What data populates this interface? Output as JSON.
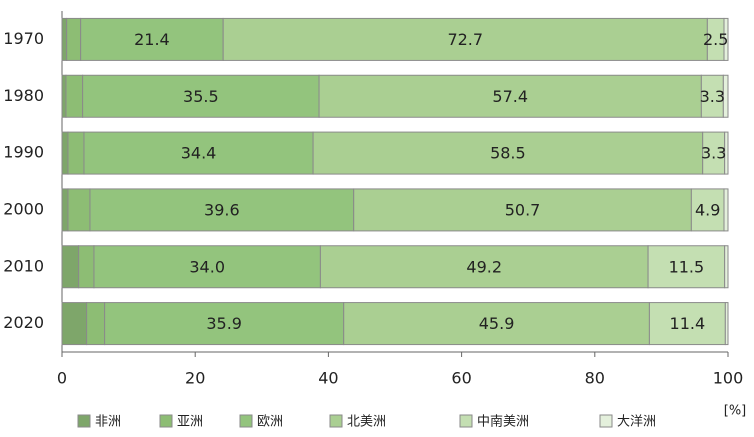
{
  "chart_data": {
    "type": "stacked-bar-horizontal",
    "categories": [
      "1970",
      "1980",
      "1990",
      "2000",
      "2010",
      "2020"
    ],
    "series": [
      {
        "name": "非洲",
        "color": "#7ea66a",
        "values": [
          0.7,
          0.6,
          0.9,
          0.9,
          2.5,
          3.7
        ]
      },
      {
        "name": "亚洲",
        "color": "#8dbd74",
        "values": [
          2.1,
          2.5,
          2.4,
          3.3,
          2.3,
          2.7
        ]
      },
      {
        "name": "欧洲",
        "color": "#93c47d",
        "values": [
          21.4,
          35.5,
          34.4,
          39.6,
          34.0,
          35.9
        ],
        "value_labels": [
          "21.4",
          "35.5",
          "34.4",
          "39.6",
          "34.0",
          "35.9"
        ]
      },
      {
        "name": "北美洲",
        "color": "#aacf92",
        "values": [
          72.7,
          57.4,
          58.5,
          50.7,
          49.2,
          45.9
        ]
      },
      {
        "name": "中南美洲",
        "color": "#c4dfb2",
        "values": [
          2.5,
          3.3,
          3.3,
          4.9,
          11.5,
          11.4
        ]
      },
      {
        "name": "大洋洲",
        "color": "#e4f0dc",
        "values": [
          0.6,
          0.7,
          0.5,
          0.6,
          0.5,
          0.4
        ]
      }
    ],
    "xlabel": "[%]",
    "xlim": [
      0,
      100
    ],
    "xticks": [
      0,
      20,
      40,
      60,
      80,
      100
    ]
  }
}
